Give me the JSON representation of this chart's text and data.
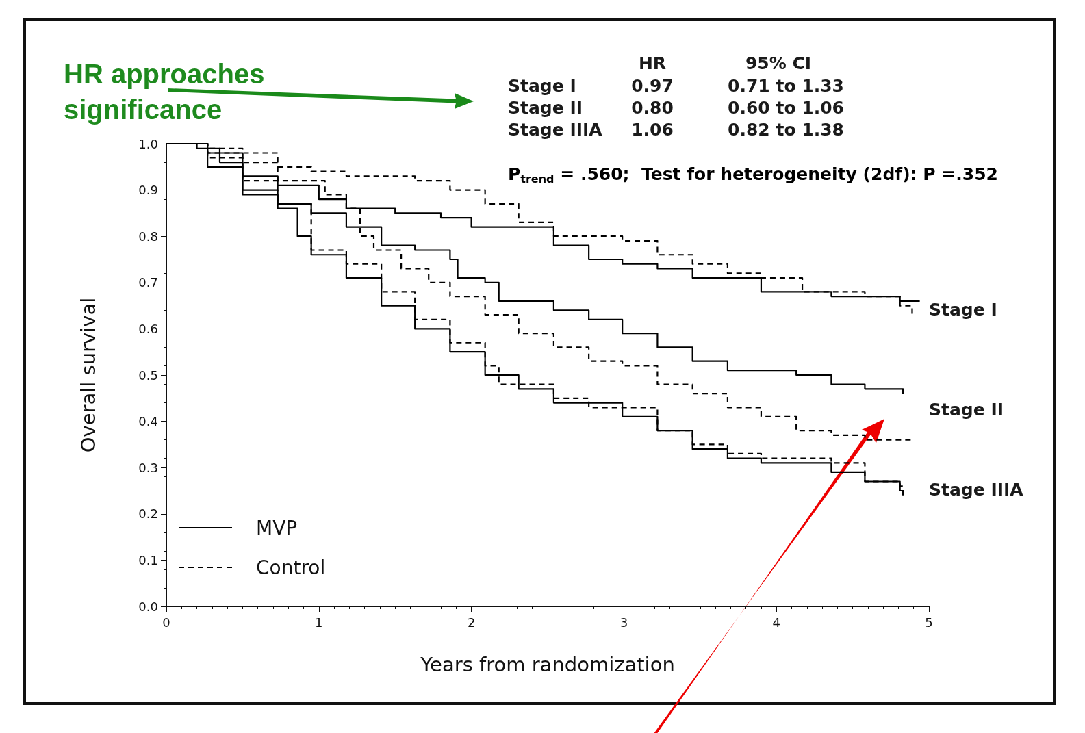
{
  "chart_data": {
    "type": "step",
    "xlabel": "Years from randomization",
    "ylabel": "Overall survival",
    "xlim": [
      0,
      5
    ],
    "xticks": [
      0,
      1,
      2,
      3,
      4,
      5
    ],
    "ylim": [
      0,
      1
    ],
    "yticks": [
      {
        "value": 0,
        "label": "0.0"
      },
      {
        "value": 0.1,
        "label": "0.1"
      },
      {
        "value": 0.2,
        "label": "0.2"
      },
      {
        "value": 0.3,
        "label": "0.3"
      },
      {
        "value": 0.4,
        "label": "0.4"
      },
      {
        "value": 0.5,
        "label": "0.5"
      },
      {
        "value": 0.6,
        "label": "0.6"
      },
      {
        "value": 0.7,
        "label": "0.7"
      },
      {
        "value": 0.8,
        "label": "0.8"
      },
      {
        "value": 0.9,
        "label": "0.9"
      },
      {
        "value": 1,
        "label": "1.0"
      }
    ],
    "grid": false,
    "legend": "bottom left",
    "marker": "none",
    "series": [
      {
        "name": "MVP",
        "color": "#000000",
        "line_style": "solid",
        "x": [
          0,
          0.2,
          0.35,
          0.5,
          0.73,
          1.0,
          1.18,
          1.5,
          1.8,
          2.0,
          2.31,
          2.54,
          2.77,
          2.99,
          3.22,
          3.45,
          3.9,
          4.36,
          4.81,
          4.94
        ],
        "values": [
          1,
          0.99,
          0.96,
          0.93,
          0.91,
          0.88,
          0.86,
          0.85,
          0.84,
          0.82,
          0.82,
          0.78,
          0.75,
          0.74,
          0.73,
          0.71,
          0.68,
          0.67,
          0.66,
          0.66
        ]
      },
      {
        "name": "Control",
        "color": "#000000",
        "line_style": "dashed",
        "x": [
          0,
          0.27,
          0.5,
          0.73,
          0.95,
          1.18,
          1.63,
          1.86,
          2.09,
          2.31,
          2.54,
          2.99,
          3.22,
          3.45,
          3.68,
          3.9,
          4.17,
          4.58,
          4.81,
          4.89
        ],
        "values": [
          1,
          0.99,
          0.96,
          0.95,
          0.94,
          0.93,
          0.92,
          0.9,
          0.87,
          0.83,
          0.8,
          0.79,
          0.76,
          0.74,
          0.72,
          0.71,
          0.68,
          0.67,
          0.65,
          0.63
        ]
      },
      {
        "color": "#000000",
        "line_style": "solid",
        "x": [
          0,
          0.27,
          0.5,
          0.73,
          0.95,
          1.18,
          1.41,
          1.63,
          1.86,
          1.91,
          2.09,
          2.18,
          2.54,
          2.77,
          2.99,
          3.22,
          3.45,
          3.68,
          4.13,
          4.36,
          4.58,
          4.81,
          4.83
        ],
        "values": [
          1,
          0.98,
          0.9,
          0.87,
          0.85,
          0.82,
          0.78,
          0.77,
          0.75,
          0.71,
          0.7,
          0.66,
          0.64,
          0.62,
          0.59,
          0.56,
          0.53,
          0.51,
          0.5,
          0.48,
          0.47,
          0.47,
          0.46
        ]
      },
      {
        "color": "#000000",
        "line_style": "dashed",
        "x": [
          0,
          0.27,
          0.73,
          1.04,
          1.18,
          1.27,
          1.36,
          1.54,
          1.72,
          1.86,
          2.09,
          2.31,
          2.54,
          2.77,
          2.99,
          3.22,
          3.45,
          3.68,
          3.9,
          4.13,
          4.36,
          4.58,
          4.89
        ],
        "values": [
          1,
          0.98,
          0.92,
          0.89,
          0.86,
          0.8,
          0.77,
          0.73,
          0.7,
          0.67,
          0.63,
          0.59,
          0.56,
          0.53,
          0.52,
          0.48,
          0.46,
          0.43,
          0.41,
          0.38,
          0.37,
          0.36,
          0.36
        ]
      },
      {
        "color": "#000000",
        "line_style": "solid",
        "x": [
          0,
          0.27,
          0.5,
          0.73,
          0.86,
          0.95,
          1.18,
          1.41,
          1.63,
          1.86,
          2.09,
          2.31,
          2.54,
          2.99,
          3.22,
          3.45,
          3.68,
          3.9,
          4.36,
          4.58,
          4.81,
          4.83
        ],
        "values": [
          1,
          0.95,
          0.89,
          0.86,
          0.8,
          0.76,
          0.71,
          0.65,
          0.6,
          0.55,
          0.5,
          0.47,
          0.44,
          0.41,
          0.38,
          0.34,
          0.32,
          0.31,
          0.29,
          0.27,
          0.25,
          0.24
        ]
      },
      {
        "color": "#000000",
        "line_style": "dashed",
        "x": [
          0,
          0.27,
          0.5,
          0.73,
          0.95,
          1.18,
          1.41,
          1.63,
          1.86,
          2.09,
          2.18,
          2.54,
          2.77,
          3.22,
          3.45,
          3.68,
          3.9,
          4.36,
          4.58,
          4.81,
          4.83
        ],
        "values": [
          1,
          0.97,
          0.92,
          0.87,
          0.77,
          0.74,
          0.68,
          0.62,
          0.57,
          0.52,
          0.48,
          0.45,
          0.43,
          0.38,
          0.35,
          0.33,
          0.32,
          0.31,
          0.27,
          0.26,
          0.25
        ]
      }
    ],
    "annotations": [
      "HR approaches significance",
      "HR",
      "95% CI",
      "Stage I",
      "0.97",
      "0.71 to 1.33",
      "Stage II",
      "0.80",
      "0.60 to 1.06",
      "Stage IIIA",
      "1.06",
      "0.82 to 1.38",
      "P$_{trend}$ = .560;  Test for heterogeneity (2df): P =.352",
      "Stage I",
      "Stage II",
      "Stage IIIA"
    ]
  }
}
